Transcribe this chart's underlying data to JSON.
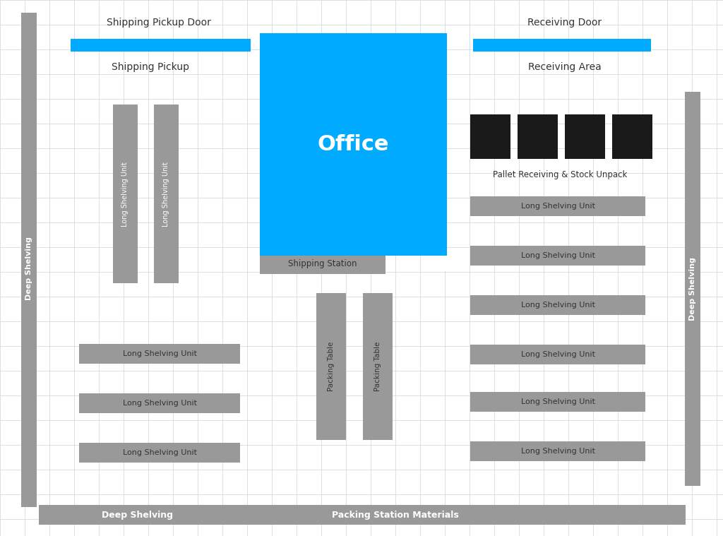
{
  "fig_width": 10.24,
  "fig_height": 7.59,
  "bg_color": "#ffffff",
  "grid_color": "#c8d4dc",
  "shelving_gray": "#999999",
  "pallet_dark": "#1a1a1a",
  "blue_color": "#00aaff",
  "text_white": "#ffffff",
  "text_dark": "#333333",
  "title_shipping_door": "Shipping Pickup Door",
  "title_shipping_pickup": "Shipping Pickup",
  "title_receiving_door": "Receiving Door",
  "title_receiving_area": "Receiving Area",
  "title_office": "Office",
  "title_shipping_station": "Shipping Station",
  "title_pallet": "Pallet Receiving & Stock Unpack",
  "title_deep_shelving_bottom": "Deep Shelving",
  "title_packing_materials": "Packing Station Materials",
  "title_deep_shelving_left": "Deep Shelving",
  "title_deep_shelving_right": "Deep Shelving",
  "title_long_shelving": "Long Shelving Unit",
  "title_packing_table": "Packing Table"
}
